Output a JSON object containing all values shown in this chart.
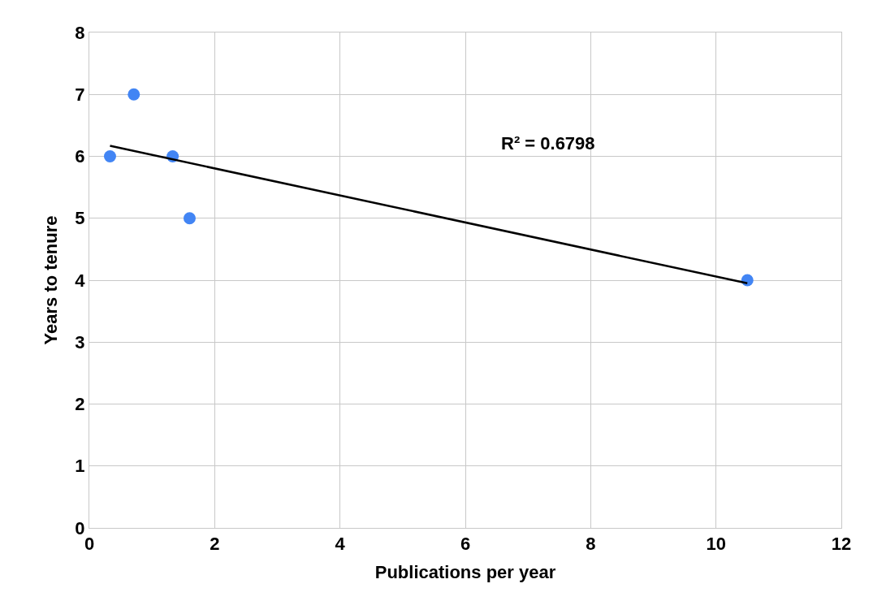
{
  "chart_data": {
    "type": "scatter",
    "xlabel": "Publications per year",
    "ylabel": "Years to tenure",
    "xlim": [
      0,
      12
    ],
    "xticks": [
      0,
      2,
      4,
      6,
      8,
      10,
      12
    ],
    "ylim": [
      0,
      8
    ],
    "yticks": [
      0,
      1,
      2,
      3,
      4,
      5,
      6,
      7,
      8
    ],
    "grid": true,
    "marker": "circle",
    "series": [
      {
        "color": "#4285f4",
        "x": [
          0.33,
          0.71,
          1.33,
          1.6,
          10.5
        ],
        "values": [
          6,
          7,
          6,
          5,
          4
        ]
      },
      {
        "type": "line",
        "color": "#000000",
        "x": [
          0.33,
          10.5
        ],
        "values": [
          6.17,
          3.95
        ],
        "marker": "none",
        "line_style": "solid"
      }
    ],
    "annotations": [
      "R² = 0.6798"
    ]
  }
}
